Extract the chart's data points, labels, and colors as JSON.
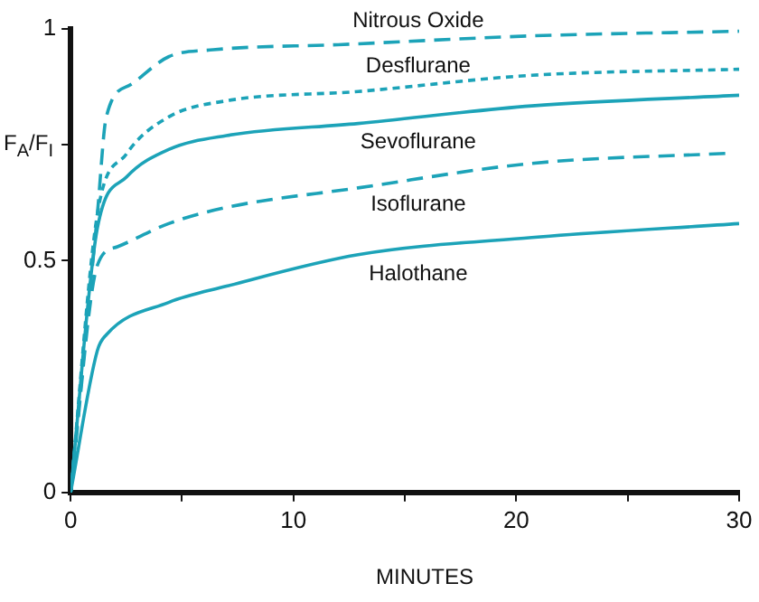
{
  "chart_data": {
    "type": "line",
    "xlabel": "MINUTES",
    "ylabel": "F$_{A}$/F$_{I}$",
    "xlim": [
      0,
      30
    ],
    "xticks": [
      0,
      {
        "value": 5,
        "label": null
      },
      10,
      {
        "value": 15,
        "label": null
      },
      20,
      {
        "value": 25,
        "label": null
      },
      30
    ],
    "ylim": [
      0,
      1
    ],
    "yticks": [
      0,
      0.5,
      {
        "value": 0.75,
        "label": null
      },
      1
    ],
    "grid": false,
    "legend": false,
    "marker": "none",
    "series": [
      {
        "name": "Nitrous Oxide",
        "color": "#1ca3b8",
        "line_style": "dashed",
        "x": [
          0,
          1.2,
          1.6,
          2.7,
          4.4,
          6.4,
          12,
          20.7,
          30
        ],
        "values": [
          0,
          0.6,
          0.81,
          0.88,
          0.94,
          0.955,
          0.966,
          0.985,
          0.995
        ]
      },
      {
        "name": "Desflurane",
        "color": "#1ca3b8",
        "line_style": "dotted",
        "x": [
          0,
          1.2,
          2.5,
          4.4,
          7,
          12.9,
          20.7,
          30
        ],
        "values": [
          0,
          0.6,
          0.73,
          0.81,
          0.845,
          0.865,
          0.9,
          0.913
        ]
      },
      {
        "name": "Sevoflurane",
        "color": "#1ca3b8",
        "line_style": "solid",
        "x": [
          0,
          1.2,
          2.5,
          4.4,
          7,
          12.9,
          20.7,
          30
        ],
        "values": [
          0,
          0.57,
          0.68,
          0.74,
          0.77,
          0.796,
          0.834,
          0.857
        ]
      },
      {
        "name": "Isoflurane",
        "color": "#1ca3b8",
        "line_style": "dashed",
        "x": [
          0,
          1.2,
          2.1,
          4.4,
          7,
          12.9,
          20.7,
          29.6
        ],
        "values": [
          0,
          0.49,
          0.53,
          0.58,
          0.615,
          0.657,
          0.71,
          0.732
        ]
      },
      {
        "name": "Halothane",
        "color": "#1ca3b8",
        "line_style": "solid",
        "x": [
          0,
          1.2,
          1.6,
          4.4,
          7,
          12.9,
          20.7,
          30
        ],
        "values": [
          0,
          0.306,
          0.34,
          0.41,
          0.445,
          0.513,
          0.55,
          0.58
        ]
      }
    ]
  }
}
